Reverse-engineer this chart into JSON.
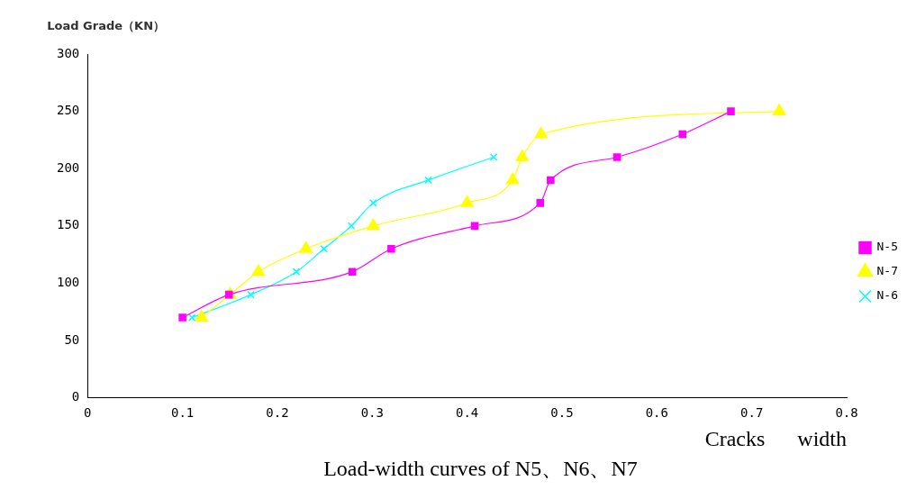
{
  "chart_data": {
    "type": "line",
    "title": "Load-width curves of N5、N6、N7",
    "xlabel": "Cracks      width",
    "ylabel": "Load Grade（KN）",
    "xlim": [
      0,
      0.8
    ],
    "xticks": [
      0,
      0.1,
      0.2,
      0.3,
      0.4,
      0.5,
      0.6,
      0.7,
      0.8
    ],
    "ylim": [
      0,
      300
    ],
    "yticks": [
      0,
      50,
      100,
      150,
      200,
      250,
      300
    ],
    "grid": false,
    "legend": "right",
    "line_style": "solid",
    "series": [
      {
        "name": "N-5",
        "color": "#ff00ff",
        "marker": "square",
        "x": [
          0.1,
          0.149,
          0.279,
          0.32,
          0.408,
          0.477,
          0.488,
          0.558,
          0.627,
          0.678
        ],
        "values": [
          70,
          90,
          110,
          130,
          150,
          170,
          190,
          210,
          230,
          250
        ]
      },
      {
        "name": "N-7",
        "color": "#ffff00",
        "marker": "triangle",
        "x": [
          0.12,
          0.15,
          0.18,
          0.23,
          0.301,
          0.4,
          0.448,
          0.458,
          0.478,
          0.729
        ],
        "values": [
          70,
          90,
          110,
          130,
          150,
          170,
          190,
          210,
          230,
          250
        ]
      },
      {
        "name": "N-6",
        "color": "#00ffff",
        "marker": "cross",
        "x": [
          0.11,
          0.172,
          0.22,
          0.249,
          0.278,
          0.301,
          0.359,
          0.428
        ],
        "values": [
          70,
          90,
          110,
          130,
          150,
          170,
          190,
          210
        ]
      }
    ]
  }
}
